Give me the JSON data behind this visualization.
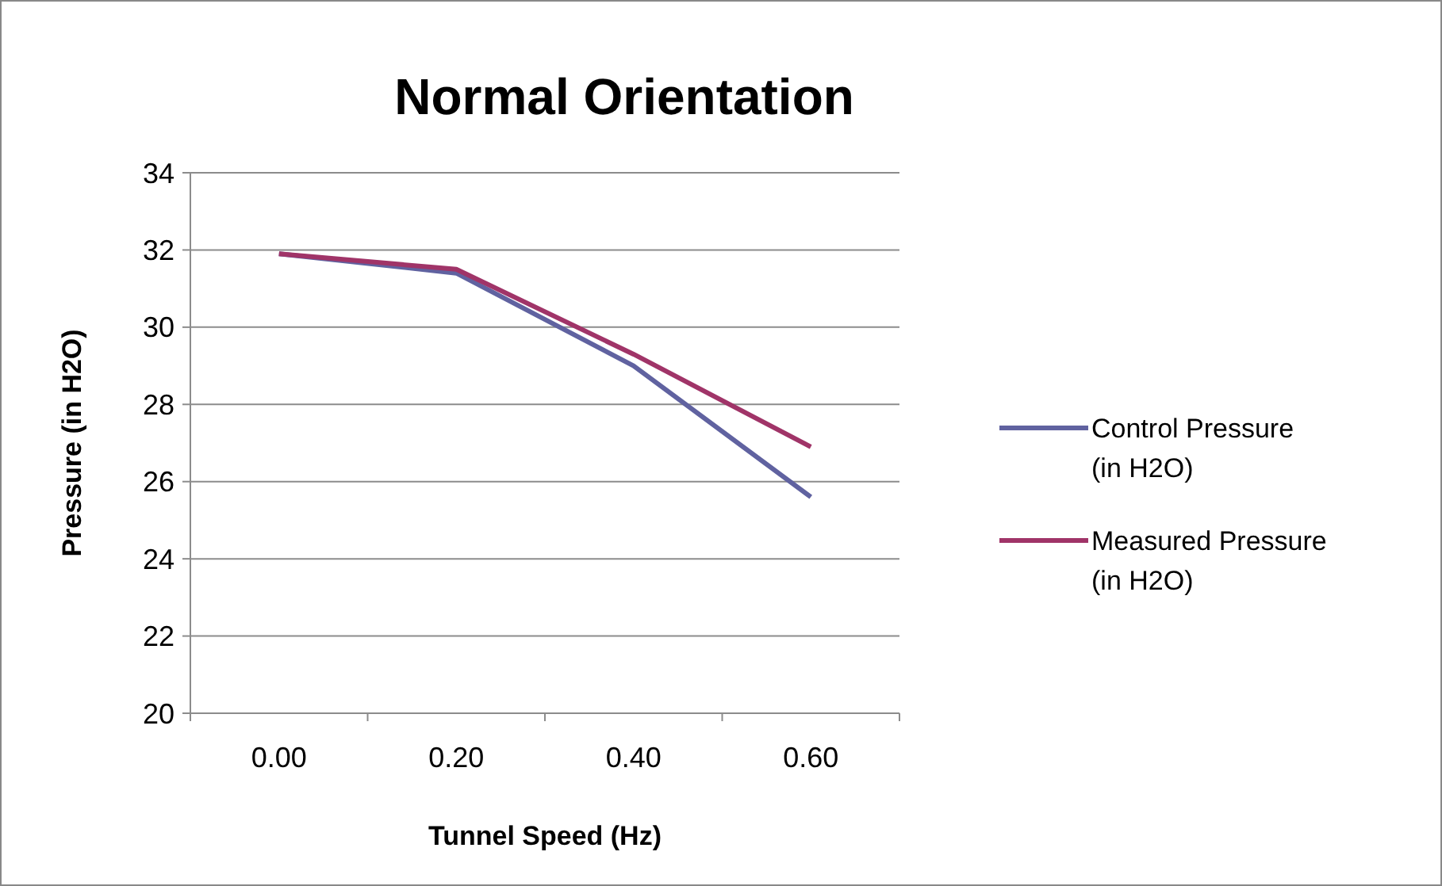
{
  "chart_data": {
    "type": "line",
    "title": "Normal Orientation",
    "xlabel": "Tunnel Speed (Hz)",
    "ylabel": "Pressure (in H2O)",
    "categories": [
      "0.00",
      "0.20",
      "0.40",
      "0.60"
    ],
    "series": [
      {
        "name": "Control Pressure (in H2O)",
        "color": "#6062a0",
        "values": [
          31.9,
          31.4,
          29.0,
          25.6
        ]
      },
      {
        "name": "Measured Pressure (in H2O)",
        "color": "#a03468",
        "values": [
          31.9,
          31.5,
          29.3,
          26.9
        ]
      }
    ],
    "ylim": [
      20,
      34
    ],
    "yticks": [
      20,
      22,
      24,
      26,
      28,
      30,
      32,
      34
    ],
    "grid": "y",
    "legend": "right",
    "marker": "none"
  }
}
